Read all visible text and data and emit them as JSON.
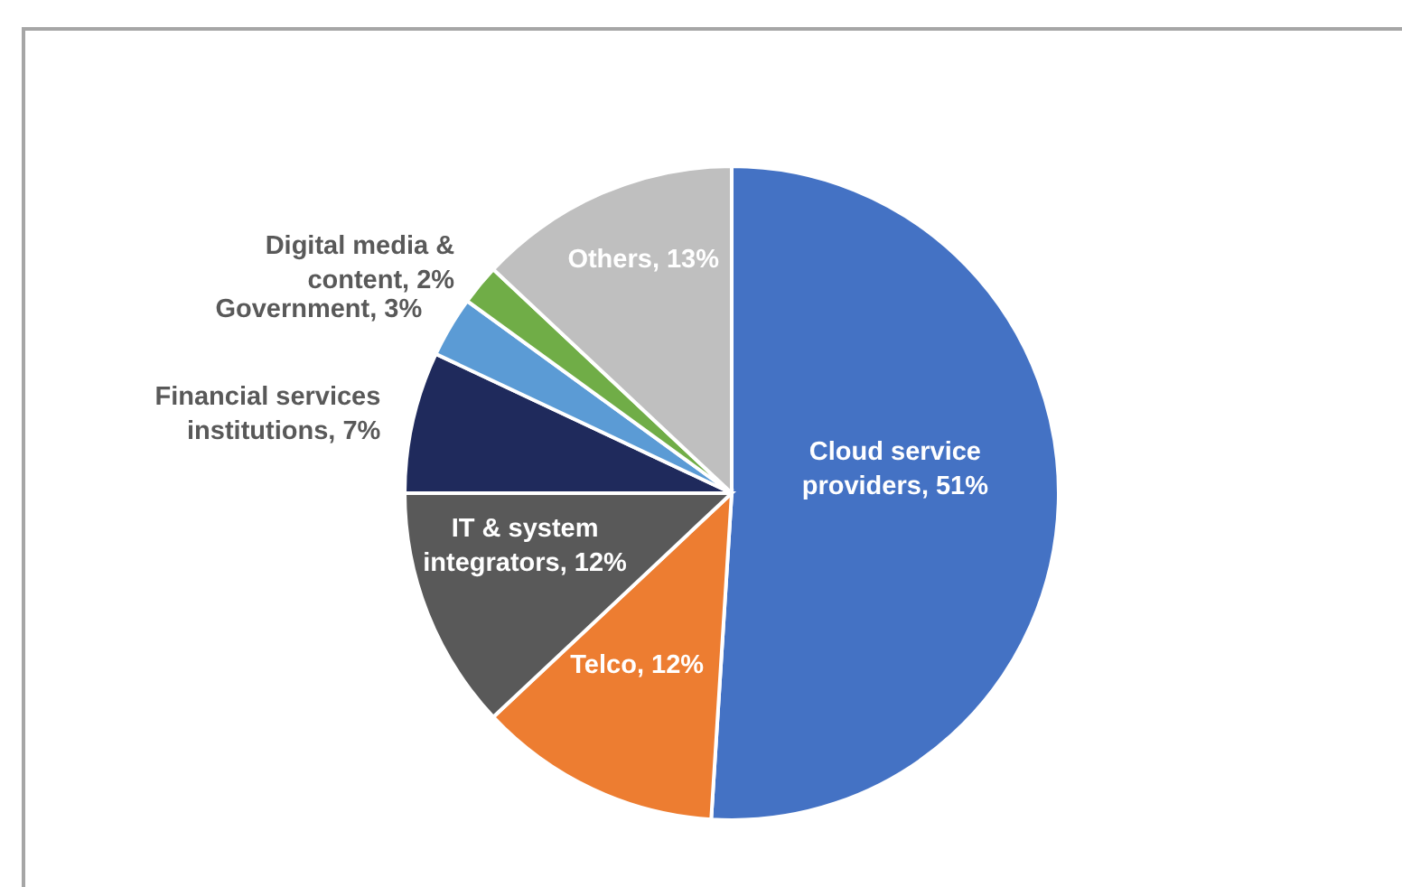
{
  "chart_data": {
    "type": "pie",
    "categories": [
      "Cloud service providers",
      "Telco",
      "IT & system integrators",
      "Financial services institutions",
      "Government",
      "Digital media & content",
      "Others"
    ],
    "values": [
      51,
      12,
      12,
      7,
      3,
      2,
      13
    ],
    "colors": [
      "#4472c4",
      "#ed7d31",
      "#595959",
      "#1f2a5c",
      "#5b9bd5",
      "#70ad47",
      "#bfbfbf"
    ],
    "value_labels": [
      "51%",
      "12%",
      "12%",
      "7%",
      "3%",
      "2%",
      "13%"
    ],
    "legend": false
  }
}
